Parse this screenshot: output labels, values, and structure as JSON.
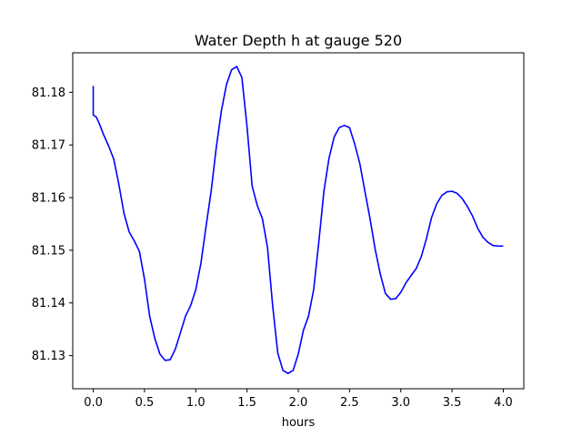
{
  "chart_data": {
    "type": "line",
    "title": "Water Depth h at gauge 520",
    "xlabel": "hours",
    "ylabel": "",
    "xlim": [
      -0.2,
      4.2
    ],
    "ylim": [
      81.1237,
      81.1875
    ],
    "grid": false,
    "xticks": [
      0.0,
      0.5,
      1.0,
      1.5,
      2.0,
      2.5,
      3.0,
      3.5,
      4.0
    ],
    "xtick_labels": [
      "0.0",
      "0.5",
      "1.0",
      "1.5",
      "2.0",
      "2.5",
      "3.0",
      "3.5",
      "4.0"
    ],
    "yticks": [
      81.13,
      81.14,
      81.15,
      81.16,
      81.17,
      81.18
    ],
    "ytick_labels": [
      "81.13",
      "81.14",
      "81.15",
      "81.16",
      "81.17",
      "81.18"
    ],
    "series": [
      {
        "color": "#0000ff",
        "points": [
          [
            0.0,
            81.1812
          ],
          [
            0.0,
            81.1757
          ],
          [
            0.03,
            81.1753
          ],
          [
            0.06,
            81.174
          ],
          [
            0.1,
            81.172
          ],
          [
            0.15,
            81.1698
          ],
          [
            0.2,
            81.1673
          ],
          [
            0.25,
            81.1625
          ],
          [
            0.3,
            81.157
          ],
          [
            0.35,
            81.1535
          ],
          [
            0.4,
            81.1518
          ],
          [
            0.45,
            81.1498
          ],
          [
            0.5,
            81.1445
          ],
          [
            0.55,
            81.1375
          ],
          [
            0.6,
            81.1333
          ],
          [
            0.65,
            81.1303
          ],
          [
            0.7,
            81.1291
          ],
          [
            0.75,
            81.1292
          ],
          [
            0.8,
            81.1312
          ],
          [
            0.85,
            81.1343
          ],
          [
            0.9,
            81.1375
          ],
          [
            0.95,
            81.1395
          ],
          [
            1.0,
            81.1425
          ],
          [
            1.05,
            81.1475
          ],
          [
            1.1,
            81.1545
          ],
          [
            1.15,
            81.1612
          ],
          [
            1.2,
            81.1695
          ],
          [
            1.25,
            81.1765
          ],
          [
            1.3,
            81.1815
          ],
          [
            1.35,
            81.1843
          ],
          [
            1.4,
            81.1849
          ],
          [
            1.45,
            81.1828
          ],
          [
            1.5,
            81.1735
          ],
          [
            1.55,
            81.1622
          ],
          [
            1.6,
            81.1585
          ],
          [
            1.65,
            81.156
          ],
          [
            1.7,
            81.1505
          ],
          [
            1.75,
            81.1395
          ],
          [
            1.8,
            81.1305
          ],
          [
            1.85,
            81.1272
          ],
          [
            1.9,
            81.1266
          ],
          [
            1.95,
            81.1272
          ],
          [
            2.0,
            81.1303
          ],
          [
            2.05,
            81.1348
          ],
          [
            2.1,
            81.1375
          ],
          [
            2.15,
            81.1425
          ],
          [
            2.2,
            81.1515
          ],
          [
            2.25,
            81.1612
          ],
          [
            2.3,
            81.1675
          ],
          [
            2.35,
            81.1715
          ],
          [
            2.4,
            81.1733
          ],
          [
            2.45,
            81.1737
          ],
          [
            2.5,
            81.1733
          ],
          [
            2.55,
            81.1702
          ],
          [
            2.6,
            81.1665
          ],
          [
            2.65,
            81.1612
          ],
          [
            2.7,
            81.156
          ],
          [
            2.75,
            81.1502
          ],
          [
            2.8,
            81.1455
          ],
          [
            2.85,
            81.1418
          ],
          [
            2.9,
            81.1407
          ],
          [
            2.95,
            81.1408
          ],
          [
            3.0,
            81.142
          ],
          [
            3.05,
            81.1438
          ],
          [
            3.1,
            81.1452
          ],
          [
            3.15,
            81.1465
          ],
          [
            3.2,
            81.1488
          ],
          [
            3.25,
            81.1522
          ],
          [
            3.3,
            81.1562
          ],
          [
            3.35,
            81.1588
          ],
          [
            3.4,
            81.1604
          ],
          [
            3.45,
            81.1611
          ],
          [
            3.5,
            81.1612
          ],
          [
            3.55,
            81.1608
          ],
          [
            3.6,
            81.1598
          ],
          [
            3.65,
            81.1583
          ],
          [
            3.7,
            81.1565
          ],
          [
            3.75,
            81.1542
          ],
          [
            3.8,
            81.1525
          ],
          [
            3.85,
            81.1515
          ],
          [
            3.9,
            81.1509
          ],
          [
            3.95,
            81.1508
          ],
          [
            4.0,
            81.1508
          ]
        ]
      }
    ]
  }
}
